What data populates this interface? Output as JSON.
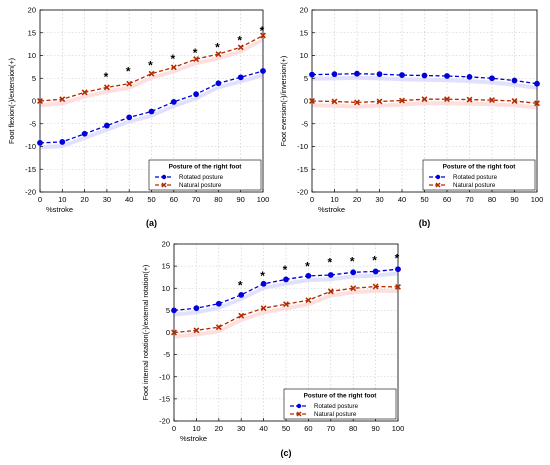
{
  "legend": {
    "title": "Posture of the right foot",
    "rotated": "Rotated posture",
    "natural": "Natural posture"
  },
  "colors": {
    "rotated": "#0000dd",
    "natural": "#b52b00",
    "band_rotated": "#dcdcff",
    "band_natural": "#ffd8d8",
    "grid": "#c8c8c8",
    "axis": "#000000"
  },
  "chart_data": [
    {
      "id": "a",
      "type": "line",
      "panel_label": "(a)",
      "xlabel": "%stroke",
      "ylabel": "Foot flexion(-)/extension(+)",
      "x": [
        0,
        10,
        20,
        30,
        40,
        50,
        60,
        70,
        80,
        90,
        100
      ],
      "xlim": [
        0,
        100
      ],
      "ylim": [
        -20,
        20
      ],
      "xticks": [
        0,
        10,
        20,
        30,
        40,
        50,
        60,
        70,
        80,
        90,
        100
      ],
      "yticks": [
        -20,
        -15,
        -10,
        -5,
        0,
        5,
        10,
        15,
        20
      ],
      "grid": true,
      "legend_position": "bottom-right",
      "series": [
        {
          "name": "Rotated posture",
          "key": "rotated",
          "marker": "circle",
          "values": [
            -9.2,
            -9.0,
            -7.2,
            -5.4,
            -3.6,
            -2.3,
            -0.2,
            1.5,
            3.9,
            5.2,
            6.6
          ]
        },
        {
          "name": "Natural posture",
          "key": "natural",
          "marker": "x",
          "values": [
            0.0,
            0.4,
            1.9,
            3.0,
            3.8,
            6.0,
            7.4,
            9.2,
            10.3,
            11.8,
            14.4
          ]
        }
      ],
      "significance": {
        "symbol": "*",
        "x": [
          30,
          40,
          50,
          60,
          70,
          80,
          90,
          100
        ],
        "y": [
          5.5,
          6.7,
          8.0,
          9.5,
          10.8,
          12.0,
          13.5,
          15.6
        ]
      }
    },
    {
      "id": "b",
      "type": "line",
      "panel_label": "(b)",
      "xlabel": "%stroke",
      "ylabel": "Foot eversion(-)/inversion(+)",
      "x": [
        0,
        10,
        20,
        30,
        40,
        50,
        60,
        70,
        80,
        90,
        100
      ],
      "xlim": [
        0,
        100
      ],
      "ylim": [
        -20,
        20
      ],
      "xticks": [
        0,
        10,
        20,
        30,
        40,
        50,
        60,
        70,
        80,
        90,
        100
      ],
      "yticks": [
        -20,
        -15,
        -10,
        -5,
        0,
        5,
        10,
        15,
        20
      ],
      "grid": true,
      "legend_position": "bottom-right",
      "series": [
        {
          "name": "Rotated posture",
          "key": "rotated",
          "marker": "circle",
          "values": [
            5.8,
            5.9,
            6.0,
            5.9,
            5.7,
            5.6,
            5.5,
            5.3,
            5.0,
            4.5,
            3.8
          ]
        },
        {
          "name": "Natural posture",
          "key": "natural",
          "marker": "x",
          "values": [
            0.0,
            -0.1,
            -0.3,
            -0.1,
            0.1,
            0.4,
            0.4,
            0.3,
            0.2,
            0.0,
            -0.5
          ]
        }
      ]
    },
    {
      "id": "c",
      "type": "line",
      "panel_label": "(c)",
      "xlabel": "%stroke",
      "ylabel": "Foot internal rotation(-)/external rotation(+)",
      "x": [
        0,
        10,
        20,
        30,
        40,
        50,
        60,
        70,
        80,
        90,
        100
      ],
      "xlim": [
        0,
        100
      ],
      "ylim": [
        -20,
        20
      ],
      "xticks": [
        0,
        10,
        20,
        30,
        40,
        50,
        60,
        70,
        80,
        90,
        100
      ],
      "yticks": [
        -20,
        -15,
        -10,
        -5,
        0,
        5,
        10,
        15,
        20
      ],
      "grid": true,
      "legend_position": "bottom-right",
      "series": [
        {
          "name": "Rotated posture",
          "key": "rotated",
          "marker": "circle",
          "values": [
            5.0,
            5.5,
            6.5,
            8.5,
            11.0,
            12.0,
            12.8,
            13.0,
            13.6,
            13.8,
            14.3
          ]
        },
        {
          "name": "Natural posture",
          "key": "natural",
          "marker": "x",
          "values": [
            0.0,
            0.5,
            1.2,
            3.8,
            5.5,
            6.4,
            7.3,
            9.3,
            10.0,
            10.4,
            10.3
          ]
        }
      ],
      "significance": {
        "symbol": "*",
        "x": [
          30,
          40,
          50,
          60,
          70,
          80,
          90,
          100
        ],
        "y": [
          10.9,
          13.0,
          14.3,
          15.1,
          16.0,
          16.3,
          16.5,
          16.9
        ]
      }
    }
  ]
}
